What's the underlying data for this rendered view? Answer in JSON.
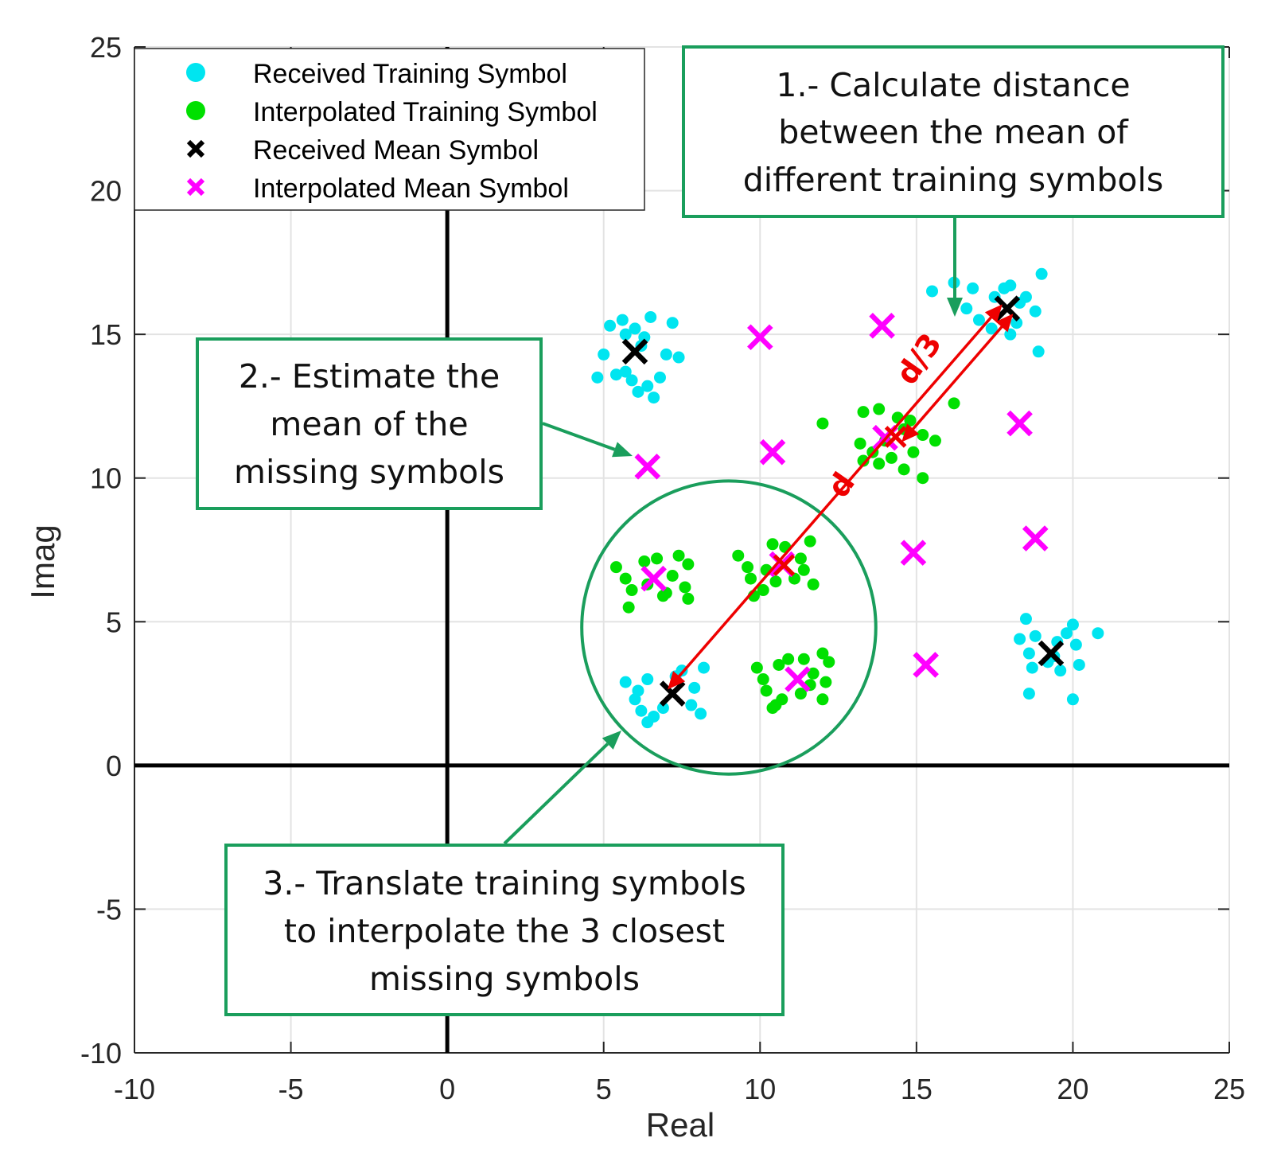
{
  "chart_data": {
    "type": "scatter",
    "title": "",
    "xlabel": "Real",
    "ylabel": "Imag",
    "xlim": [
      -10,
      25
    ],
    "ylim": [
      -10,
      25
    ],
    "xticks": [
      "-10",
      "-5",
      "0",
      "5",
      "10",
      "15",
      "20",
      "25"
    ],
    "yticks": [
      "-10",
      "-5",
      "0",
      "5",
      "10",
      "15",
      "20",
      "25"
    ],
    "grid": true,
    "legend_position": "top-left",
    "colors": {
      "received_training": "#00e5f0",
      "interpolated_training": "#00e000",
      "received_mean": "#000000",
      "interpolated_mean": "#ff00ff",
      "annotation": "#1a9e5c",
      "arrow": "#ee0000"
    },
    "series": [
      {
        "name": "Received Training Symbol",
        "marker": "dot",
        "color": "#00e5f0",
        "points": [
          [
            5.2,
            15.3
          ],
          [
            5.6,
            15.5
          ],
          [
            6.0,
            15.2
          ],
          [
            6.5,
            15.6
          ],
          [
            7.2,
            15.4
          ],
          [
            5.7,
            15.0
          ],
          [
            6.3,
            14.9
          ],
          [
            5.0,
            14.3
          ],
          [
            6.2,
            14.6
          ],
          [
            7.4,
            14.2
          ],
          [
            7.0,
            14.3
          ],
          [
            4.8,
            13.5
          ],
          [
            5.4,
            13.6
          ],
          [
            5.9,
            13.4
          ],
          [
            6.4,
            13.2
          ],
          [
            6.1,
            13.0
          ],
          [
            6.8,
            13.5
          ],
          [
            6.6,
            12.8
          ],
          [
            5.7,
            13.7
          ],
          [
            15.5,
            16.5
          ],
          [
            16.2,
            16.8
          ],
          [
            16.8,
            16.6
          ],
          [
            17.5,
            16.3
          ],
          [
            18.0,
            16.7
          ],
          [
            18.3,
            16.1
          ],
          [
            19.0,
            17.1
          ],
          [
            16.6,
            15.9
          ],
          [
            17.0,
            15.5
          ],
          [
            17.4,
            15.2
          ],
          [
            18.2,
            15.4
          ],
          [
            18.8,
            15.8
          ],
          [
            18.0,
            15.0
          ],
          [
            18.9,
            14.4
          ],
          [
            17.8,
            16.6
          ],
          [
            18.5,
            16.3
          ],
          [
            18.5,
            5.1
          ],
          [
            18.8,
            4.5
          ],
          [
            19.5,
            4.3
          ],
          [
            19.8,
            4.6
          ],
          [
            20.0,
            4.9
          ],
          [
            18.3,
            4.4
          ],
          [
            20.8,
            4.6
          ],
          [
            18.6,
            3.9
          ],
          [
            19.2,
            3.6
          ],
          [
            19.6,
            3.3
          ],
          [
            20.2,
            3.5
          ],
          [
            18.7,
            3.4
          ],
          [
            20.1,
            4.2
          ],
          [
            18.6,
            2.5
          ],
          [
            19.4,
            3.8
          ],
          [
            20.0,
            2.3
          ],
          [
            5.7,
            2.9
          ],
          [
            6.1,
            2.6
          ],
          [
            6.4,
            3.0
          ],
          [
            7.5,
            3.3
          ],
          [
            8.2,
            3.4
          ],
          [
            7.9,
            2.7
          ],
          [
            6.0,
            2.3
          ],
          [
            6.2,
            1.9
          ],
          [
            6.6,
            1.7
          ],
          [
            6.9,
            2.0
          ],
          [
            7.8,
            2.1
          ],
          [
            8.1,
            1.8
          ],
          [
            6.4,
            1.5
          ],
          [
            7.3,
            3.1
          ]
        ]
      },
      {
        "name": "Interpolated Training Symbol",
        "marker": "dot",
        "color": "#00e000",
        "points": [
          [
            13.3,
            12.3
          ],
          [
            13.8,
            12.4
          ],
          [
            14.4,
            12.1
          ],
          [
            14.8,
            12.0
          ],
          [
            15.2,
            11.5
          ],
          [
            16.2,
            12.6
          ],
          [
            12.0,
            11.9
          ],
          [
            13.2,
            11.2
          ],
          [
            13.6,
            10.9
          ],
          [
            14.2,
            10.7
          ],
          [
            14.9,
            10.9
          ],
          [
            15.6,
            11.3
          ],
          [
            13.8,
            10.5
          ],
          [
            14.6,
            10.3
          ],
          [
            13.3,
            10.6
          ],
          [
            15.2,
            10.0
          ],
          [
            14.6,
            11.7
          ],
          [
            14.0,
            11.3
          ],
          [
            5.4,
            6.9
          ],
          [
            5.7,
            6.5
          ],
          [
            6.3,
            7.1
          ],
          [
            6.7,
            7.2
          ],
          [
            7.4,
            7.3
          ],
          [
            7.7,
            7.0
          ],
          [
            5.9,
            6.1
          ],
          [
            6.4,
            6.3
          ],
          [
            7.0,
            6.0
          ],
          [
            7.6,
            6.2
          ],
          [
            7.2,
            6.6
          ],
          [
            5.8,
            5.5
          ],
          [
            6.9,
            5.9
          ],
          [
            7.7,
            5.8
          ],
          [
            9.3,
            7.3
          ],
          [
            9.6,
            6.9
          ],
          [
            10.4,
            7.7
          ],
          [
            10.8,
            7.6
          ],
          [
            11.3,
            7.2
          ],
          [
            11.6,
            7.8
          ],
          [
            9.7,
            6.5
          ],
          [
            10.1,
            6.1
          ],
          [
            9.8,
            5.9
          ],
          [
            10.5,
            6.4
          ],
          [
            11.1,
            6.5
          ],
          [
            11.7,
            6.3
          ],
          [
            10.2,
            6.8
          ],
          [
            11.4,
            6.8
          ],
          [
            9.9,
            3.4
          ],
          [
            10.1,
            3.0
          ],
          [
            10.6,
            3.5
          ],
          [
            10.9,
            3.7
          ],
          [
            11.4,
            3.7
          ],
          [
            12.0,
            3.9
          ],
          [
            12.2,
            3.6
          ],
          [
            10.2,
            2.6
          ],
          [
            10.4,
            2.0
          ],
          [
            10.7,
            2.3
          ],
          [
            11.3,
            2.5
          ],
          [
            11.6,
            2.8
          ],
          [
            12.0,
            2.3
          ],
          [
            10.5,
            2.1
          ],
          [
            11.7,
            3.2
          ],
          [
            12.1,
            2.9
          ]
        ]
      },
      {
        "name": "Received Mean Symbol",
        "marker": "x",
        "color": "#000000",
        "points": [
          [
            6.0,
            14.4
          ],
          [
            17.9,
            15.9
          ],
          [
            19.3,
            3.9
          ],
          [
            7.2,
            2.5
          ]
        ]
      },
      {
        "name": "Interpolated Mean Symbol",
        "marker": "x",
        "color": "#ff00ff",
        "points": [
          [
            10.0,
            14.9
          ],
          [
            13.9,
            15.3
          ],
          [
            6.4,
            10.4
          ],
          [
            10.4,
            10.9
          ],
          [
            14.0,
            11.4
          ],
          [
            18.3,
            11.9
          ],
          [
            14.9,
            7.4
          ],
          [
            18.8,
            7.9
          ],
          [
            6.6,
            6.5
          ],
          [
            10.7,
            7.0
          ],
          [
            15.3,
            3.5
          ],
          [
            11.2,
            3.0
          ]
        ]
      }
    ],
    "annotations": [
      {
        "lines": [
          "1.- Calculate distance",
          "between the mean of",
          "different training symbols"
        ]
      },
      {
        "lines": [
          "2.- Estimate the",
          "mean of the",
          "missing symbols"
        ]
      },
      {
        "lines": [
          "3.- Translate training symbols",
          "to interpolate the 3 closest",
          "missing symbols"
        ]
      }
    ],
    "distance_labels": {
      "d": "d",
      "d3": "d/3"
    },
    "distance_segment": {
      "from": [
        7.2,
        2.5
      ],
      "to": [
        17.9,
        15.9
      ]
    },
    "highlight_circle": {
      "center": [
        9.0,
        4.8
      ],
      "radius_x": 4.7,
      "radius_y": 5.1
    }
  }
}
